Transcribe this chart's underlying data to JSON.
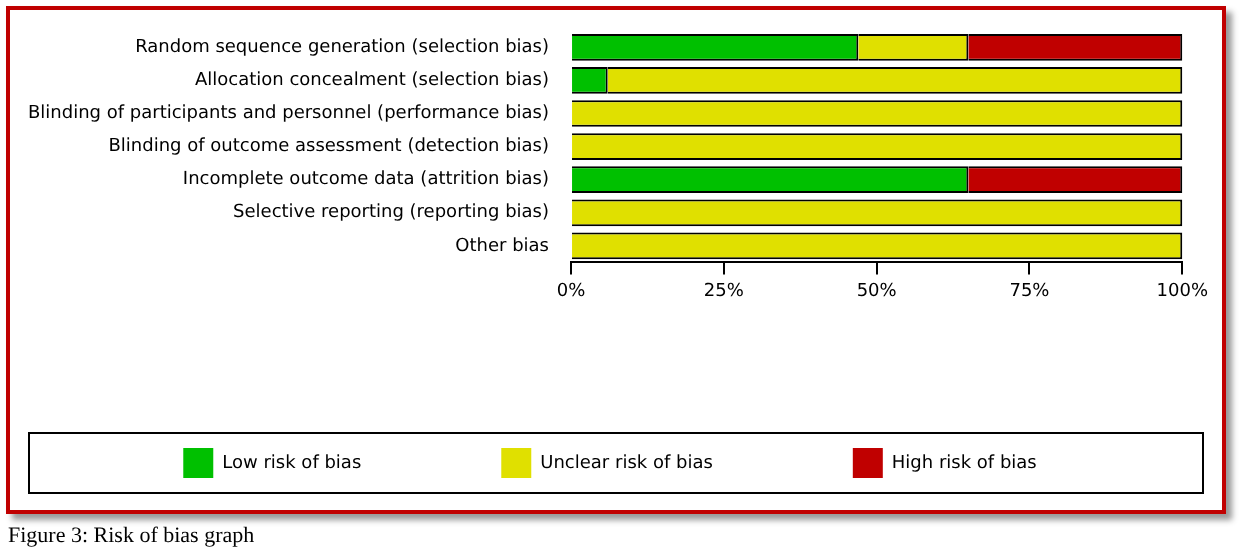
{
  "chart_data": {
    "type": "bar",
    "orientation": "horizontal",
    "stacked": true,
    "categories": [
      "Random sequence generation (selection bias)",
      "Allocation concealment (selection bias)",
      "Blinding of participants and personnel (performance bias)",
      "Blinding of outcome assessment (detection bias)",
      "Incomplete outcome data (attrition bias)",
      "Selective reporting (reporting bias)",
      "Other bias"
    ],
    "series": [
      {
        "name": "Low risk of bias",
        "color": "#00c000",
        "values": [
          47,
          6,
          0,
          0,
          65,
          0,
          0
        ]
      },
      {
        "name": "Unclear risk of bias",
        "color": "#e0e000",
        "values": [
          18,
          94,
          100,
          100,
          0,
          100,
          100
        ]
      },
      {
        "name": "High risk of bias",
        "color": "#c00000",
        "values": [
          35,
          0,
          0,
          0,
          35,
          0,
          0
        ]
      }
    ],
    "xlim": [
      0,
      100
    ],
    "xticks": [
      {
        "value": 0,
        "label": "0%"
      },
      {
        "value": 25,
        "label": "25%"
      },
      {
        "value": 50,
        "label": "50%"
      },
      {
        "value": 75,
        "label": "75%"
      },
      {
        "value": 100,
        "label": "100%"
      }
    ],
    "grid": false,
    "legend": "bottom",
    "annotations": [
      "Figure 3: Risk of bias graph"
    ]
  }
}
